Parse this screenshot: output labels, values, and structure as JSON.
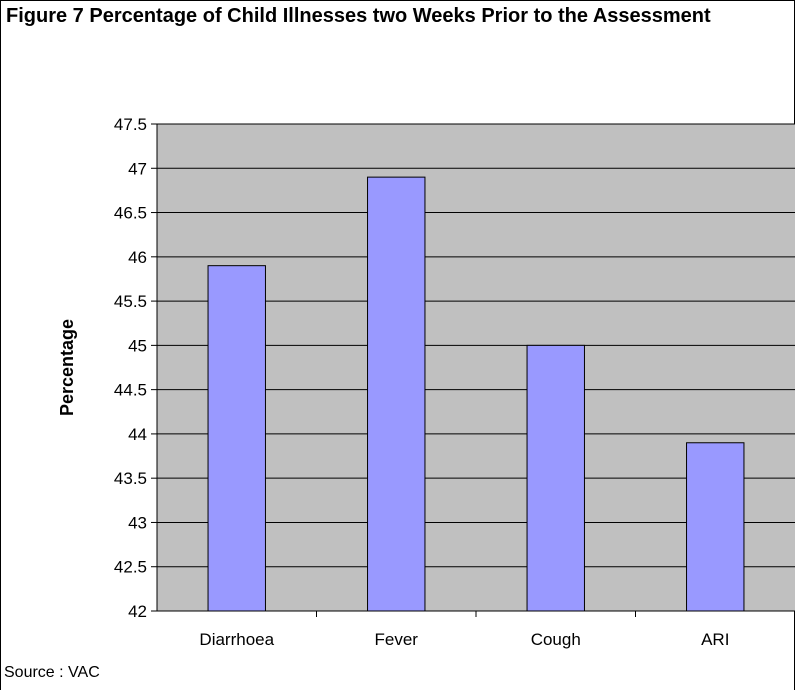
{
  "chart_data": {
    "type": "bar",
    "title": "Figure 7  Percentage of Child Illnesses two Weeks Prior to the Assessment",
    "xlabel": "",
    "ylabel": "Percentage",
    "categories": [
      "Diarrhoea",
      "Fever",
      "Cough",
      "ARI"
    ],
    "values": [
      45.9,
      46.9,
      45.0,
      43.9
    ],
    "ylim": [
      42,
      47.5
    ],
    "yticks": [
      "42",
      "42.5",
      "43",
      "43.5",
      "44",
      "44.5",
      "45",
      "45.5",
      "46",
      "46.5",
      "47",
      "47.5"
    ],
    "grid": true,
    "legend": "none",
    "colors": {
      "bar": "#9999ff",
      "plot_background": "#c0c0c0",
      "grid": "#000000"
    }
  },
  "source": "Source : VAC"
}
